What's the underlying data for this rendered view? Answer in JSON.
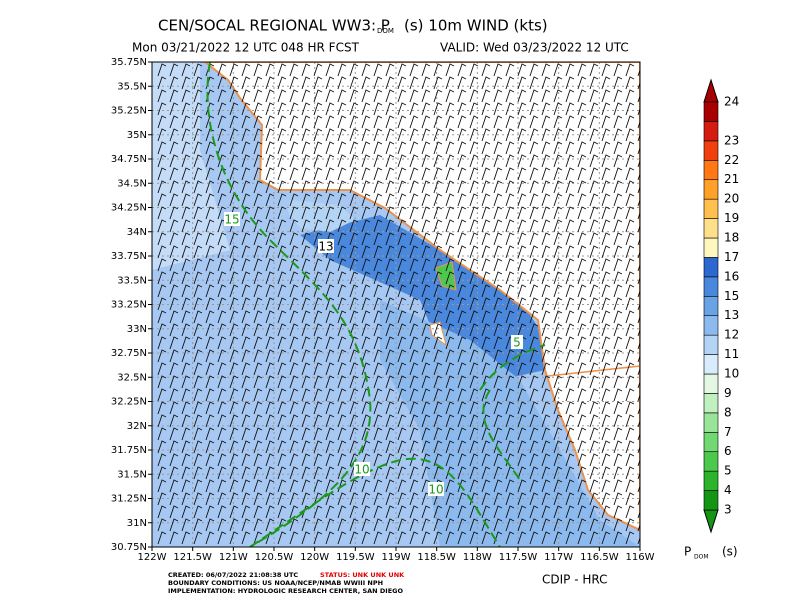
{
  "header": {
    "title_parts": [
      "CEN/SOCAL REGIONAL WW3: P",
      "DOM",
      "(s) 10m WIND (kts)"
    ],
    "run": "Mon 03/21/2022 12 UTC 048 HR FCST",
    "valid": "VALID: Wed 03/23/2022 12 UTC"
  },
  "map": {
    "lat_labels": [
      "35.75N",
      "35.5N",
      "35.25N",
      "35N",
      "34.75N",
      "34.5N",
      "34.25N",
      "34N",
      "33.75N",
      "33.5N",
      "33.25N",
      "33N",
      "32.75N",
      "32.5N",
      "32.25N",
      "32N",
      "31.75N",
      "31.5N",
      "31.25N",
      "31N",
      "30.75N"
    ],
    "lon_labels": [
      "122W",
      "121.5W",
      "121W",
      "120.5W",
      "120W",
      "119.5W",
      "119W",
      "118.5W",
      "118W",
      "117.5W",
      "117W",
      "116.5W",
      "116W"
    ],
    "contour_labels": [
      "15",
      "13",
      "10",
      "10",
      "5"
    ]
  },
  "colorbar": {
    "levels": [
      3,
      4,
      5,
      6,
      7,
      8,
      9,
      10,
      11,
      12,
      13,
      15,
      16,
      17,
      18,
      19,
      20,
      21,
      22,
      23,
      24
    ],
    "colors": [
      "#149614",
      "#2cb42c",
      "#4cc84c",
      "#72d872",
      "#9ae49a",
      "#c0f0c0",
      "#e2f8e2",
      "#d8ecfc",
      "#b4d4f6",
      "#8cbaee",
      "#6aa2e6",
      "#4a88de",
      "#2c68d0",
      "#fff6c0",
      "#ffe08a",
      "#ffc050",
      "#ffa028",
      "#ff7814",
      "#f04010",
      "#d41c10",
      "#a80000"
    ],
    "label_parts": [
      "P",
      "DOM",
      "(s)"
    ]
  },
  "footer": {
    "created": "CREATED: 06/07/2022 21:08:38 UTC",
    "status": "STATUS: UNK UNK UNK",
    "boundary": "BOUNDARY CONDITIONS: US NOAA/NCEP/NMAB WWIII NPH",
    "implementation": "IMPLEMENTATION: HYDROLOGIC RESEARCH CENTER, SAN DIEGO",
    "credit": "CDIP - HRC"
  }
}
